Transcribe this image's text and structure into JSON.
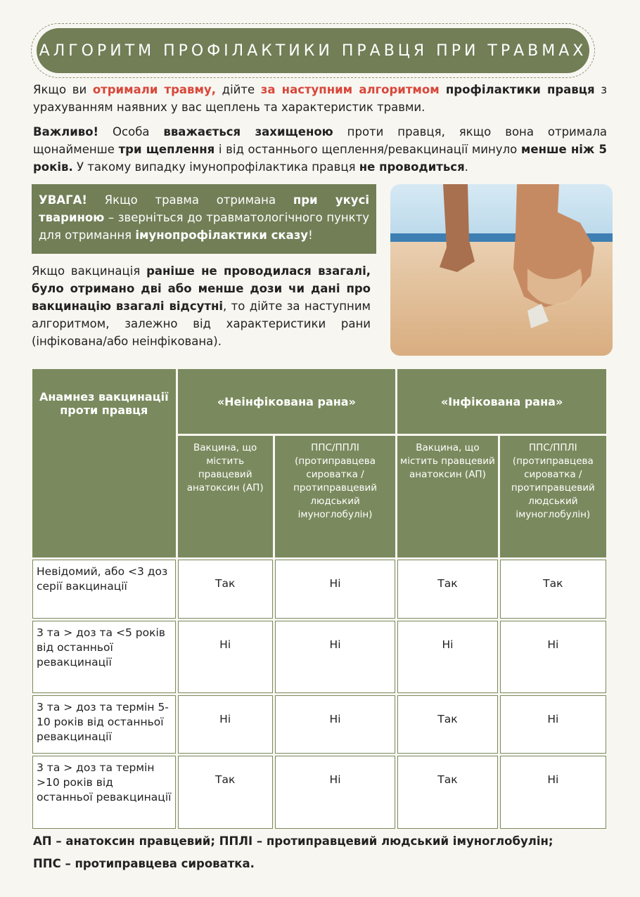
{
  "header": {
    "title": "АЛГОРИТМ ПРОФІЛАКТИКИ ПРАВЦЯ ПРИ ТРАВМАХ"
  },
  "intro": [
    {
      "text": "Якщо ви ",
      "style": "plain"
    },
    {
      "text": "отримали травму,",
      "style": "red"
    },
    {
      "text": " дійте ",
      "style": "plain"
    },
    {
      "text": "за наступним алгоритмом",
      "style": "red"
    },
    {
      "text": " профілактики правця",
      "style": "bold"
    },
    {
      "text": " з урахуванням наявних у вас щеплень та характеристик травми.",
      "style": "plain"
    }
  ],
  "important": [
    {
      "text": "Важливо!",
      "style": "bold"
    },
    {
      "text": " Особа ",
      "style": "plain"
    },
    {
      "text": "вважається захищеною",
      "style": "bold"
    },
    {
      "text": " проти правця, якщо вона отримала щонайменше ",
      "style": "plain"
    },
    {
      "text": "три щеплення",
      "style": "bold"
    },
    {
      "text": " і від останнього щеплення/ревакцинації минуло ",
      "style": "plain"
    },
    {
      "text": "менше ніж 5 років.",
      "style": "bold"
    },
    {
      "text": " У такому випадку імунопрофілактика правця ",
      "style": "plain"
    },
    {
      "text": "не проводиться",
      "style": "bold"
    },
    {
      "text": ".",
      "style": "plain"
    }
  ],
  "warning": [
    {
      "text": "УВАГА!",
      "style": "bold"
    },
    {
      "text": " Якщо травма отримана ",
      "style": "plain"
    },
    {
      "text": "при укусі твариною",
      "style": "bold"
    },
    {
      "text": " – зверніться до травматологічного пункту для отримання ",
      "style": "plain"
    },
    {
      "text": "імунопрофілактики сказу",
      "style": "bold"
    },
    {
      "text": "!",
      "style": "plain"
    }
  ],
  "no_vaccination": [
    {
      "text": "Якщо вакцинація ",
      "style": "plain"
    },
    {
      "text": "раніше не проводилася взагалі, було отримано дві або менше дози чи дані про вакцинацію взагалі відсутні",
      "style": "bold"
    },
    {
      "text": ", то дійте за наступним алгоритмом, залежно від характеристики рани (інфікована/або неінфікована).",
      "style": "plain"
    }
  ],
  "table": {
    "corner": "Анамнез вакцинації проти правця",
    "groups": [
      "«Неінфікована рана»",
      "«Інфікована рана»"
    ],
    "subheaders": [
      "Вакцина, що містить правцевий анатоксин (АП)",
      "ППС/ППЛІ (протиправцева сироватка /протиправцевий людський імуноглобулін)",
      "Вакцина, що містить правцевий анатоксин (АП)",
      "ППС/ППЛІ (протиправцева сироватка /протиправцевий людський імуноглобулін)"
    ],
    "rows": [
      [
        "Невідомий, або <3 доз серії вакцинації",
        "Так",
        "Ні",
        "Так",
        "Так"
      ],
      [
        "3 та > доз та <5 років від останньої ревакцинації",
        "Ні",
        "Ні",
        "Ні",
        "Ні"
      ],
      [
        "3 та > доз та термін 5-10 років від останньої ревакцинації",
        "Ні",
        "Ні",
        "Так",
        "Ні"
      ],
      [
        "3 та > доз та термін >10 років від останньої ревакцинації",
        "Так",
        "Ні",
        "Так",
        "Ні"
      ]
    ]
  },
  "footer": [
    "АП – анатоксин правцевий;  ППЛІ – протиправцевий людський імуноглобулін;",
    "ППС – протиправцева сироватка."
  ]
}
